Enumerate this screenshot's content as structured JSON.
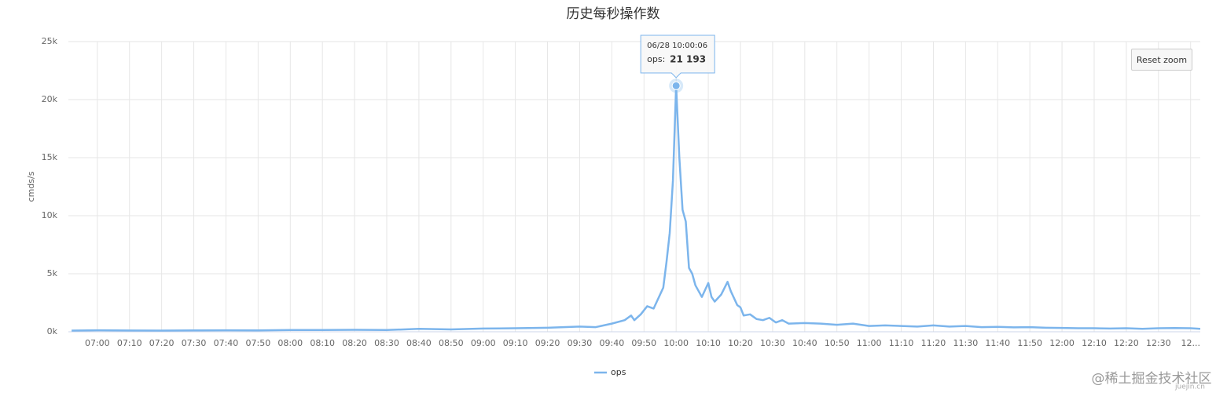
{
  "chart_data": {
    "type": "line",
    "title": "历史每秒操作数",
    "y_label": "cmds/s",
    "x": [
      "06:52",
      "07:00",
      "07:10",
      "07:20",
      "07:30",
      "07:40",
      "07:50",
      "08:00",
      "08:10",
      "08:20",
      "08:30",
      "08:40",
      "08:50",
      "09:00",
      "09:10",
      "09:20",
      "09:30",
      "09:35",
      "09:40",
      "09:44",
      "09:46",
      "09:47",
      "09:49",
      "09:51",
      "09:53",
      "09:54",
      "09:56",
      "09:57",
      "09:58",
      "09:59",
      "10:00",
      "10:01",
      "10:02",
      "10:03",
      "10:04",
      "10:05",
      "10:06",
      "10:07",
      "10:08",
      "10:10",
      "10:11",
      "10:12",
      "10:14",
      "10:16",
      "10:17",
      "10:19",
      "10:20",
      "10:21",
      "10:23",
      "10:25",
      "10:27",
      "10:29",
      "10:31",
      "10:33",
      "10:35",
      "10:40",
      "10:45",
      "10:50",
      "10:55",
      "11:00",
      "11:05",
      "11:10",
      "11:15",
      "11:20",
      "11:25",
      "11:30",
      "11:35",
      "11:40",
      "11:45",
      "11:50",
      "11:55",
      "12:00",
      "12:05",
      "12:10",
      "12:15",
      "12:20",
      "12:25",
      "12:30",
      "12:35",
      "12:40",
      "12:43"
    ],
    "series": [
      {
        "name": "ops",
        "color": "#7cb5ec",
        "values": [
          100,
          130,
          110,
          100,
          120,
          130,
          120,
          150,
          150,
          170,
          150,
          250,
          200,
          280,
          300,
          350,
          450,
          400,
          700,
          1000,
          1400,
          1000,
          1500,
          2200,
          2000,
          2600,
          3800,
          6000,
          8500,
          13000,
          21193,
          15000,
          10500,
          9500,
          5500,
          5000,
          4000,
          3500,
          3000,
          4200,
          3000,
          2600,
          3200,
          4300,
          3500,
          2300,
          2100,
          1400,
          1500,
          1100,
          1000,
          1200,
          800,
          1000,
          700,
          750,
          700,
          600,
          700,
          500,
          550,
          500,
          450,
          550,
          450,
          500,
          400,
          420,
          380,
          400,
          350,
          330,
          300,
          300,
          280,
          300,
          250,
          300,
          320,
          300,
          250
        ]
      }
    ],
    "xlim": [
      "06:51",
      "12:43"
    ],
    "xticks": [
      "07:00",
      "07:10",
      "07:20",
      "07:30",
      "07:40",
      "07:50",
      "08:00",
      "08:10",
      "08:20",
      "08:30",
      "08:40",
      "08:50",
      "09:00",
      "09:10",
      "09:20",
      "09:30",
      "09:40",
      "09:50",
      "10:00",
      "10:10",
      "10:20",
      "10:30",
      "10:40",
      "10:50",
      "11:00",
      "11:10",
      "11:20",
      "11:30",
      "11:40",
      "11:50",
      "12:00",
      "12:10",
      "12:20",
      "12:30",
      {
        "value": "12:40",
        "label": "12..."
      }
    ],
    "ylim": [
      0,
      25000
    ],
    "yticks": [
      {
        "value": 0,
        "label": "0k"
      },
      {
        "value": 5000,
        "label": "5k"
      },
      {
        "value": 10000,
        "label": "10k"
      },
      {
        "value": 15000,
        "label": "15k"
      },
      {
        "value": 20000,
        "label": "20k"
      },
      {
        "value": 25000,
        "label": "25k"
      }
    ],
    "grid": true,
    "legend": "bottom",
    "tooltip": {
      "title": "06/28 10:00:06",
      "series_label": "ops:",
      "value": 21193,
      "value_label": "21 193",
      "index": 30
    },
    "reset_zoom": "Reset zoom",
    "watermark": "@稀土掘金技术社区",
    "watermark_sub": "juejin.cn"
  }
}
